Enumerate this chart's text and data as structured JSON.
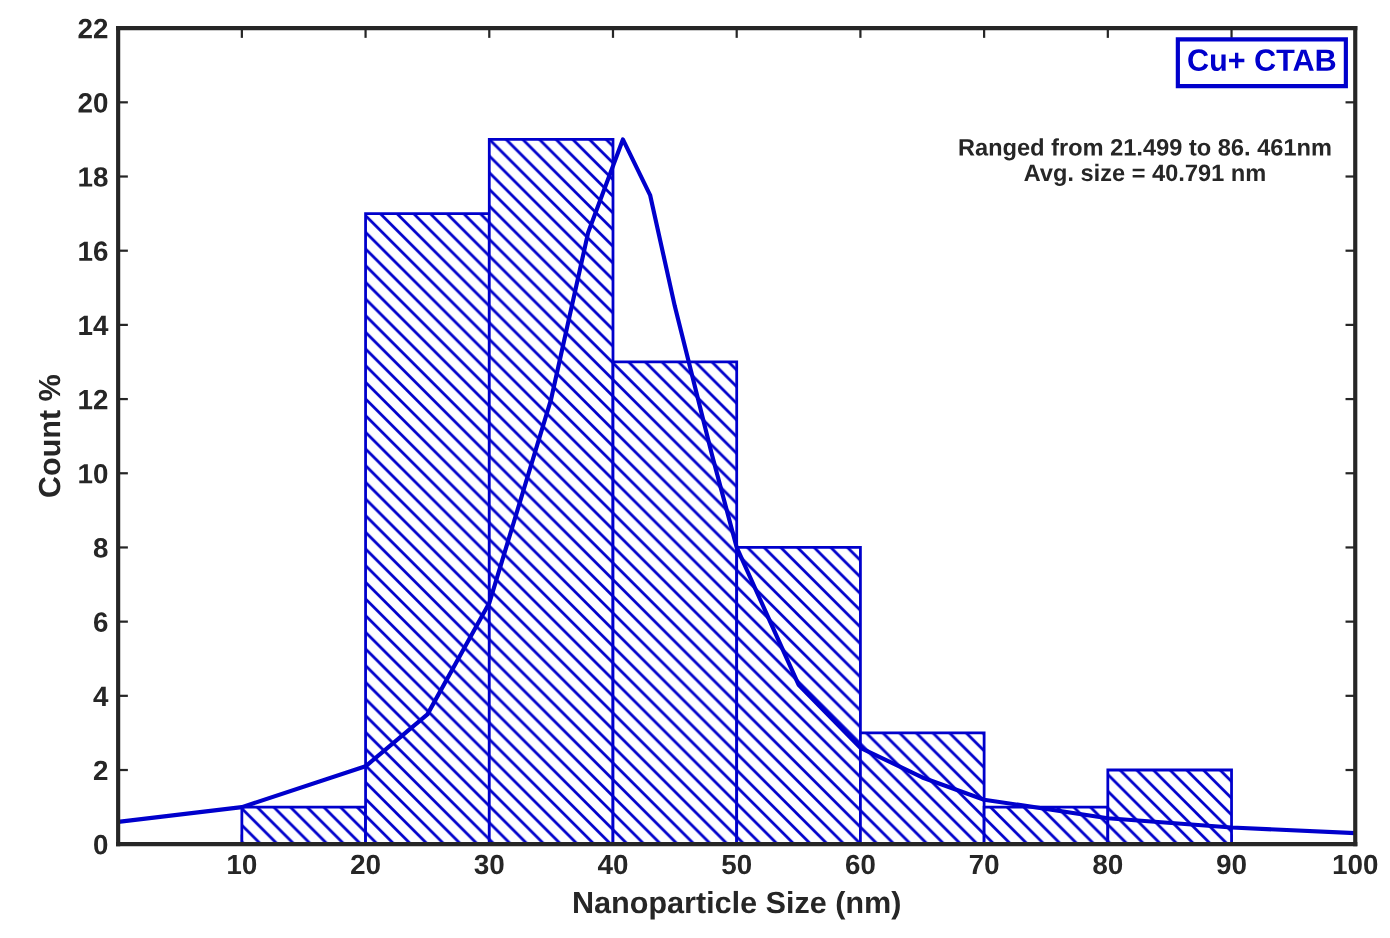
{
  "chart_data": {
    "type": "histogram",
    "xlabel": "Nanoparticle Size (nm)",
    "ylabel": "Count %",
    "bins": [
      10,
      20,
      30,
      40,
      50,
      60,
      70,
      80,
      90
    ],
    "values": [
      1,
      17,
      19,
      13,
      8,
      3,
      1,
      2
    ],
    "color": "#0000cc",
    "series": [
      {
        "type": "line",
        "color": "#0000cc",
        "x": [
          0,
          10,
          20,
          25,
          30,
          35,
          38,
          40.8,
          43,
          45,
          48,
          50,
          55,
          60,
          65,
          70,
          80,
          90,
          100
        ],
        "values": [
          0.6,
          1.0,
          2.1,
          3.5,
          6.5,
          12,
          16.5,
          19,
          17.5,
          14.5,
          10.5,
          8,
          4.3,
          2.6,
          1.8,
          1.2,
          0.7,
          0.45,
          0.3
        ]
      }
    ],
    "xlim": [
      0,
      100
    ],
    "xticks": [
      10,
      20,
      30,
      40,
      50,
      60,
      70,
      80,
      90,
      100
    ],
    "ylim": [
      0,
      22
    ],
    "yticks": [
      0,
      2,
      4,
      6,
      8,
      10,
      12,
      14,
      16,
      18,
      20,
      22
    ],
    "annotations": [
      "Cu+ CTAB",
      "Ranged from 21.499 to 86. 461nm\nAvg. size = 40.791 nm"
    ],
    "grid": false,
    "legend": false
  }
}
